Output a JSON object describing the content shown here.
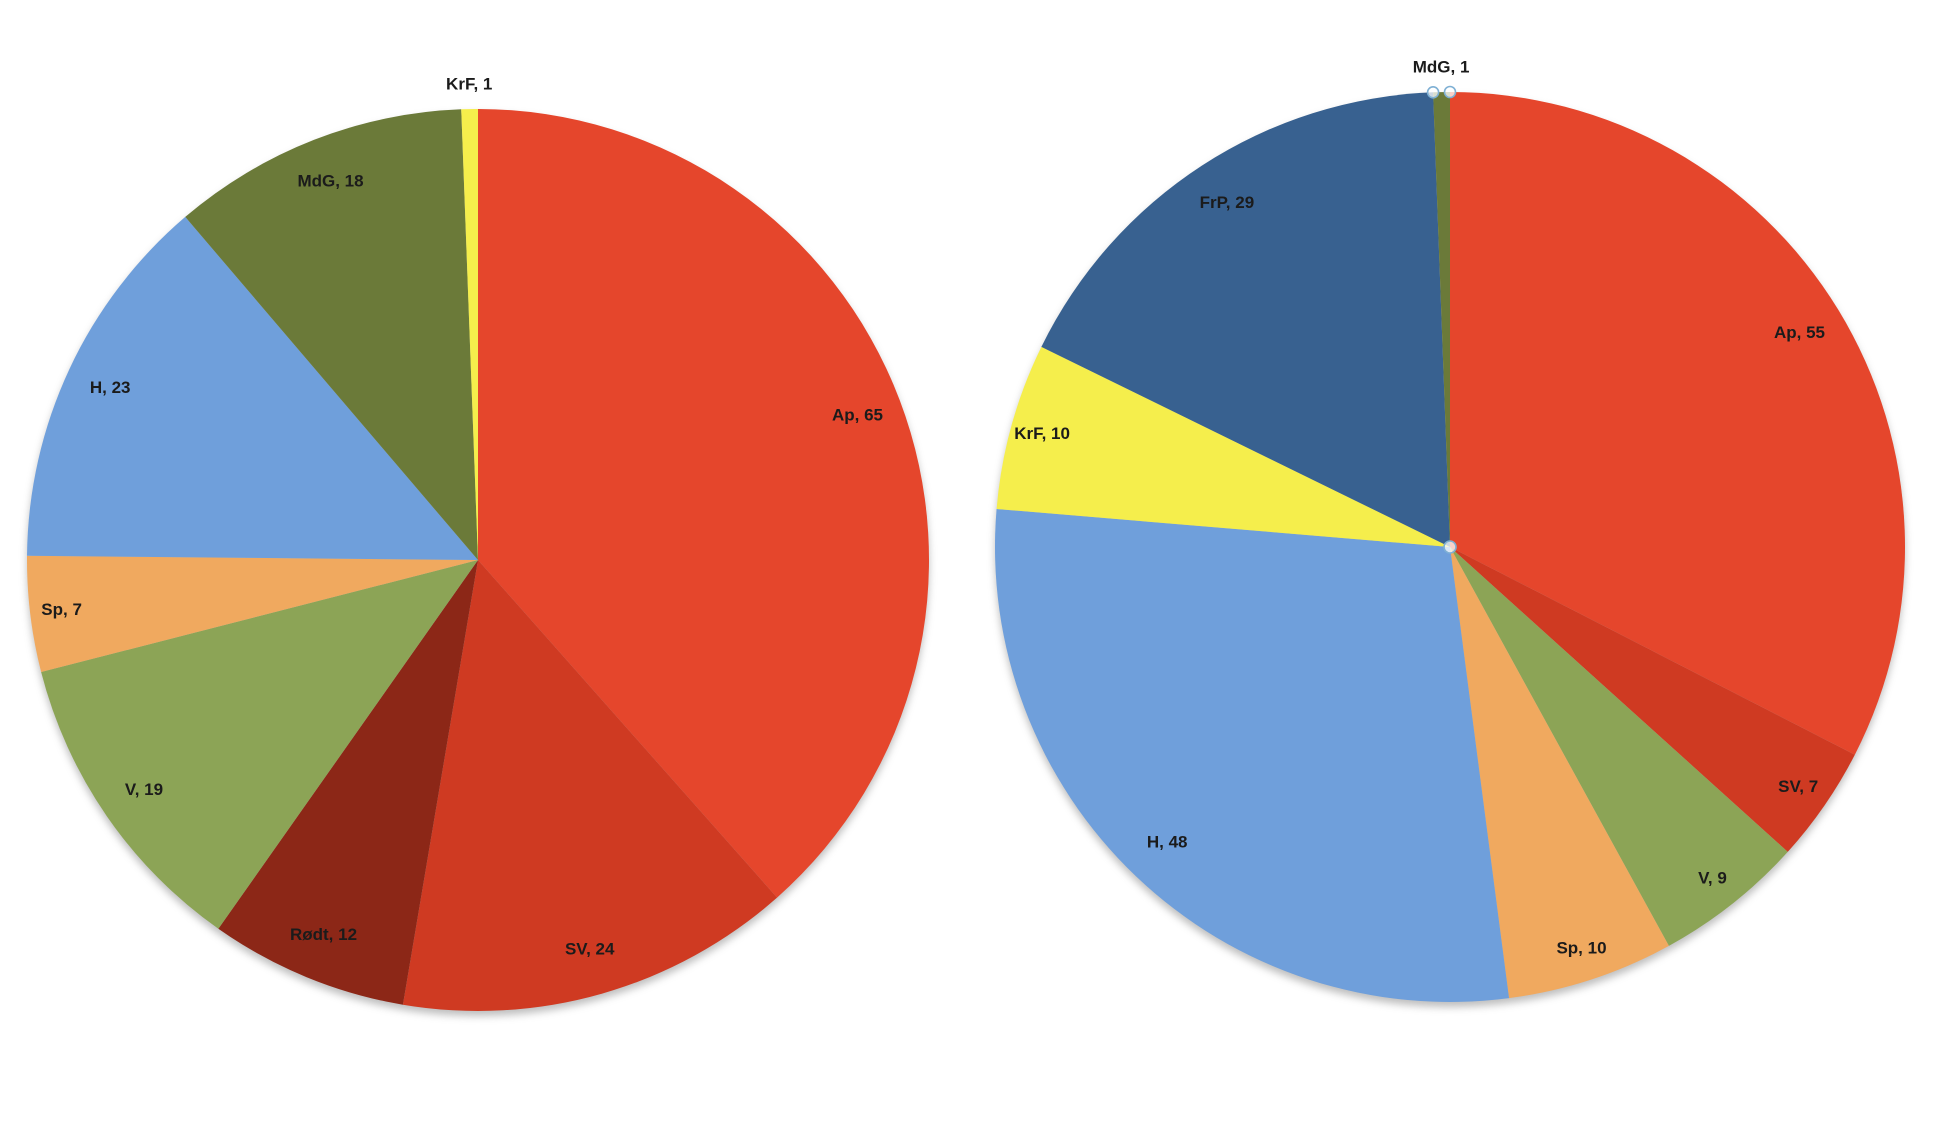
{
  "canvas": {
    "background": "#ffffff"
  },
  "chart_data": [
    {
      "type": "pie",
      "position": "left",
      "title": "",
      "total_seats": 169,
      "start_angle": "top",
      "direction": "clockwise",
      "legend": "none",
      "label_format": "{label}, {value}",
      "label_color": "#1b1b1b",
      "slices": [
        {
          "label": "Ap",
          "value": 65,
          "color": "#e5462c"
        },
        {
          "label": "SV",
          "value": 24,
          "color": "#cf3a22"
        },
        {
          "label": "Rødt",
          "value": 12,
          "color": "#8c2717"
        },
        {
          "label": "V",
          "value": 19,
          "color": "#8ca456"
        },
        {
          "label": "Sp",
          "value": 7,
          "color": "#f0a95f"
        },
        {
          "label": "H",
          "value": 23,
          "color": "#6f9fdb"
        },
        {
          "label": "MdG",
          "value": 18,
          "color": "#6b7a39"
        },
        {
          "label": "KrF",
          "value": 1,
          "color": "#f5ee4c"
        }
      ]
    },
    {
      "type": "pie",
      "position": "right",
      "title": "",
      "total_seats": 169,
      "start_angle": "top",
      "direction": "clockwise",
      "legend": "none",
      "label_format": "{label}, {value}",
      "label_color": "#1b1b1b",
      "selected_slice": "MdG",
      "selection_handle_color": "#7fb0d4",
      "slices": [
        {
          "label": "Ap",
          "value": 55,
          "color": "#e5462c"
        },
        {
          "label": "SV",
          "value": 7,
          "color": "#cf3a22"
        },
        {
          "label": "V",
          "value": 9,
          "color": "#8ca456"
        },
        {
          "label": "Sp",
          "value": 10,
          "color": "#f0a95f"
        },
        {
          "label": "H",
          "value": 48,
          "color": "#6f9fdb"
        },
        {
          "label": "KrF",
          "value": 10,
          "color": "#f5ee4c"
        },
        {
          "label": "FrP",
          "value": 29,
          "color": "#386190"
        },
        {
          "label": "MdG",
          "value": 1,
          "color": "#6b7a39"
        }
      ]
    }
  ]
}
